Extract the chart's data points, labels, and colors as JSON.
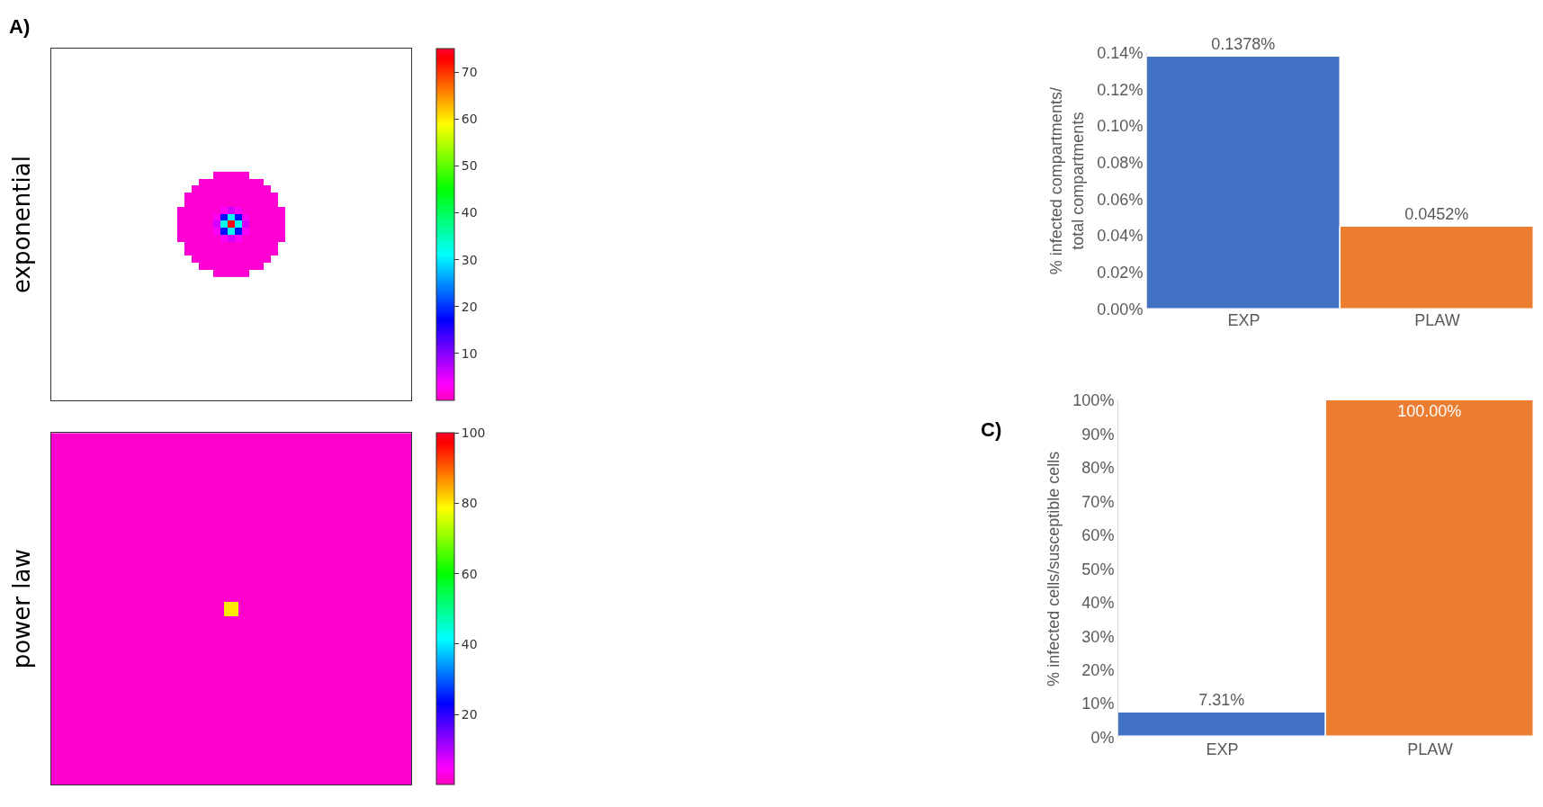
{
  "chart_data": [
    {
      "type": "heatmap",
      "ylabel": "exponential",
      "annotations": [
        "A)"
      ],
      "tick_labels": false,
      "clim": [
        0,
        75
      ],
      "cticks": [
        10,
        20,
        30,
        40,
        50,
        60,
        70
      ],
      "categories": [
        null,
        null,
        null,
        null,
        null,
        null,
        null,
        null,
        null,
        null,
        null,
        null,
        null,
        null,
        null
      ],
      "y_categories": [
        null,
        null,
        null,
        null,
        null,
        null,
        null,
        null,
        null,
        null,
        null,
        null,
        null,
        null,
        null
      ],
      "cells": [
        [
          null,
          null,
          null,
          null,
          null,
          1,
          1,
          1,
          1,
          1,
          null,
          null,
          null,
          null,
          null
        ],
        [
          null,
          null,
          null,
          1,
          1,
          1,
          1,
          1,
          1,
          1,
          1,
          1,
          null,
          null,
          null
        ],
        [
          null,
          null,
          1,
          1,
          1,
          1,
          1,
          1,
          1,
          1,
          1,
          1,
          1,
          null,
          null
        ],
        [
          null,
          1,
          1,
          1,
          1,
          1,
          1,
          1,
          1,
          1,
          1,
          1,
          1,
          1,
          null
        ],
        [
          null,
          1,
          1,
          1,
          1,
          1,
          1,
          1,
          1,
          1,
          1,
          1,
          1,
          1,
          null
        ],
        [
          1,
          1,
          1,
          1,
          1,
          1,
          3,
          6,
          3,
          1,
          1,
          1,
          1,
          1,
          1
        ],
        [
          1,
          1,
          1,
          1,
          1,
          3,
          18,
          32,
          18,
          3,
          1,
          1,
          1,
          1,
          1
        ],
        [
          1,
          1,
          1,
          1,
          1,
          6,
          32,
          74,
          32,
          6,
          1,
          1,
          1,
          1,
          1
        ],
        [
          1,
          1,
          1,
          1,
          1,
          3,
          18,
          32,
          18,
          3,
          1,
          1,
          1,
          1,
          1
        ],
        [
          1,
          1,
          1,
          1,
          1,
          1,
          3,
          6,
          3,
          1,
          1,
          1,
          1,
          1,
          1
        ],
        [
          null,
          1,
          1,
          1,
          1,
          1,
          1,
          1,
          1,
          1,
          1,
          1,
          1,
          1,
          null
        ],
        [
          null,
          1,
          1,
          1,
          1,
          1,
          1,
          1,
          1,
          1,
          1,
          1,
          1,
          1,
          null
        ],
        [
          null,
          null,
          1,
          1,
          1,
          1,
          1,
          1,
          1,
          1,
          1,
          1,
          1,
          null,
          null
        ],
        [
          null,
          null,
          null,
          1,
          1,
          1,
          1,
          1,
          1,
          1,
          1,
          1,
          null,
          null,
          null
        ],
        [
          null,
          null,
          null,
          null,
          null,
          1,
          1,
          1,
          1,
          1,
          null,
          null,
          null,
          null,
          null
        ]
      ]
    },
    {
      "type": "heatmap",
      "ylabel": "power law",
      "tick_labels": false,
      "clim": [
        0,
        100
      ],
      "cticks": [
        20,
        40,
        60,
        80,
        100
      ],
      "categories": [
        null,
        null,
        null,
        null,
        null,
        null,
        null,
        null,
        null,
        null,
        null,
        null,
        null,
        null,
        null,
        null,
        null,
        null,
        null,
        null,
        null,
        null,
        null,
        null,
        null
      ],
      "y_categories": [
        null,
        null,
        null,
        null,
        null,
        null,
        null,
        null,
        null,
        null,
        null,
        null,
        null,
        null,
        null,
        null,
        null,
        null,
        null,
        null,
        null,
        null,
        null,
        null,
        null
      ],
      "cells": [
        [
          1,
          1,
          1,
          1,
          1,
          1,
          1,
          1,
          1,
          1,
          1,
          1,
          1,
          1,
          1,
          1,
          1,
          1,
          1,
          1,
          1,
          1,
          1,
          1,
          1
        ],
        [
          1,
          1,
          1,
          1,
          1,
          1,
          1,
          1,
          1,
          1,
          1,
          1,
          1,
          1,
          1,
          1,
          1,
          1,
          1,
          1,
          1,
          1,
          1,
          1,
          1
        ],
        [
          1,
          1,
          1,
          1,
          1,
          1,
          1,
          1,
          1,
          1,
          1,
          1,
          1,
          1,
          1,
          1,
          1,
          1,
          1,
          1,
          1,
          1,
          1,
          1,
          1
        ],
        [
          1,
          1,
          1,
          1,
          1,
          1,
          1,
          1,
          1,
          1,
          1,
          1,
          1,
          1,
          1,
          1,
          1,
          1,
          1,
          1,
          1,
          1,
          1,
          1,
          1
        ],
        [
          1,
          1,
          1,
          1,
          1,
          1,
          1,
          1,
          1,
          1,
          1,
          1,
          1,
          1,
          1,
          1,
          1,
          1,
          1,
          1,
          1,
          1,
          1,
          1,
          1
        ],
        [
          1,
          1,
          1,
          1,
          1,
          1,
          1,
          1,
          1,
          1,
          1,
          1,
          1,
          1,
          1,
          1,
          1,
          1,
          1,
          1,
          1,
          1,
          1,
          1,
          1
        ],
        [
          1,
          1,
          1,
          1,
          1,
          1,
          1,
          1,
          1,
          1,
          1,
          1,
          1,
          1,
          1,
          1,
          1,
          1,
          1,
          1,
          1,
          1,
          1,
          1,
          1
        ],
        [
          1,
          1,
          1,
          1,
          1,
          1,
          1,
          1,
          1,
          1,
          1,
          1,
          1,
          1,
          1,
          1,
          1,
          1,
          1,
          1,
          1,
          1,
          1,
          1,
          1
        ],
        [
          1,
          1,
          1,
          1,
          1,
          1,
          1,
          1,
          1,
          1,
          1,
          1,
          1,
          1,
          1,
          1,
          1,
          1,
          1,
          1,
          1,
          1,
          1,
          1,
          1
        ],
        [
          1,
          1,
          1,
          1,
          1,
          1,
          1,
          1,
          1,
          1,
          1,
          1,
          1,
          1,
          1,
          1,
          1,
          1,
          1,
          1,
          1,
          1,
          1,
          1,
          1
        ],
        [
          1,
          1,
          1,
          1,
          1,
          1,
          1,
          1,
          1,
          1,
          1,
          1,
          1,
          1,
          1,
          1,
          1,
          1,
          1,
          1,
          1,
          1,
          1,
          1,
          1
        ],
        [
          1,
          1,
          1,
          1,
          1,
          1,
          1,
          1,
          1,
          1,
          1,
          1,
          1,
          1,
          1,
          1,
          1,
          1,
          1,
          1,
          1,
          1,
          1,
          1,
          1
        ],
        [
          1,
          1,
          1,
          1,
          1,
          1,
          1,
          1,
          1,
          1,
          1,
          1,
          80,
          1,
          1,
          1,
          1,
          1,
          1,
          1,
          1,
          1,
          1,
          1,
          1
        ],
        [
          1,
          1,
          1,
          1,
          1,
          1,
          1,
          1,
          1,
          1,
          1,
          1,
          1,
          1,
          1,
          1,
          1,
          1,
          1,
          1,
          1,
          1,
          1,
          1,
          1
        ],
        [
          1,
          1,
          1,
          1,
          1,
          1,
          1,
          1,
          1,
          1,
          1,
          1,
          1,
          1,
          1,
          1,
          1,
          1,
          1,
          1,
          1,
          1,
          1,
          1,
          1
        ],
        [
          1,
          1,
          1,
          1,
          1,
          1,
          1,
          1,
          1,
          1,
          1,
          1,
          1,
          1,
          1,
          1,
          1,
          1,
          1,
          1,
          1,
          1,
          1,
          1,
          1
        ],
        [
          1,
          1,
          1,
          1,
          1,
          1,
          1,
          1,
          1,
          1,
          1,
          1,
          1,
          1,
          1,
          1,
          1,
          1,
          1,
          1,
          1,
          1,
          1,
          1,
          1
        ],
        [
          1,
          1,
          1,
          1,
          1,
          1,
          1,
          1,
          1,
          1,
          1,
          1,
          1,
          1,
          1,
          1,
          1,
          1,
          1,
          1,
          1,
          1,
          1,
          1,
          1
        ],
        [
          1,
          1,
          1,
          1,
          1,
          1,
          1,
          1,
          1,
          1,
          1,
          1,
          1,
          1,
          1,
          1,
          1,
          1,
          1,
          1,
          1,
          1,
          1,
          1,
          1
        ],
        [
          1,
          1,
          1,
          1,
          1,
          1,
          1,
          1,
          1,
          1,
          1,
          1,
          1,
          1,
          1,
          1,
          1,
          1,
          1,
          1,
          1,
          1,
          1,
          1,
          1
        ],
        [
          1,
          1,
          1,
          1,
          1,
          1,
          1,
          1,
          1,
          1,
          1,
          1,
          1,
          1,
          1,
          1,
          1,
          1,
          1,
          1,
          1,
          1,
          1,
          1,
          1
        ],
        [
          1,
          1,
          1,
          1,
          1,
          1,
          1,
          1,
          1,
          1,
          1,
          1,
          1,
          1,
          1,
          1,
          1,
          1,
          1,
          1,
          1,
          1,
          1,
          1,
          1
        ],
        [
          1,
          1,
          1,
          1,
          1,
          1,
          1,
          1,
          1,
          1,
          1,
          1,
          1,
          1,
          1,
          1,
          1,
          1,
          1,
          1,
          1,
          1,
          1,
          1,
          1
        ],
        [
          1,
          1,
          1,
          1,
          1,
          1,
          1,
          1,
          1,
          1,
          1,
          1,
          1,
          1,
          1,
          1,
          1,
          1,
          1,
          1,
          1,
          1,
          1,
          1,
          1
        ],
        [
          1,
          1,
          1,
          1,
          1,
          1,
          1,
          1,
          1,
          1,
          1,
          1,
          1,
          1,
          1,
          1,
          1,
          1,
          1,
          1,
          1,
          1,
          1,
          1,
          1
        ]
      ]
    },
    {
      "type": "bar",
      "ylabel": "% infected compartments/\ntotal compartments",
      "categories": [
        "EXP",
        "PLAW"
      ],
      "values": [
        0.1378,
        0.0452
      ],
      "colors": [
        "#4472c4",
        "#ed7d31"
      ],
      "value_labels": [
        "0.1378%",
        "0.0452%"
      ],
      "ylim": [
        0,
        0.14
      ],
      "yticks": [
        {
          "value": 0,
          "label": "0.00%"
        },
        {
          "value": 0.02,
          "label": "0.02%"
        },
        {
          "value": 0.04,
          "label": "0.04%"
        },
        {
          "value": 0.06,
          "label": "0.06%"
        },
        {
          "value": 0.08,
          "label": "0.08%"
        },
        {
          "value": 0.1,
          "label": "0.10%"
        },
        {
          "value": 0.12,
          "label": "0.12%"
        },
        {
          "value": 0.14,
          "label": "0.14%"
        }
      ]
    },
    {
      "type": "bar",
      "ylabel": "% infected cells/susceptible cells",
      "annotations": [
        "C)"
      ],
      "categories": [
        "EXP",
        "PLAW"
      ],
      "values": [
        7.31,
        100
      ],
      "colors": [
        "#4472c4",
        "#ed7d31"
      ],
      "value_labels": [
        "7.31%",
        "100.00%"
      ],
      "ylim": [
        0,
        100
      ],
      "yticks": [
        {
          "value": 0,
          "label": "0%"
        },
        {
          "value": 10,
          "label": "10%"
        },
        {
          "value": 20,
          "label": "20%"
        },
        {
          "value": 30,
          "label": "30%"
        },
        {
          "value": 40,
          "label": "40%"
        },
        {
          "value": 50,
          "label": "50%"
        },
        {
          "value": 60,
          "label": "60%"
        },
        {
          "value": 70,
          "label": "70%"
        },
        {
          "value": 80,
          "label": "80%"
        },
        {
          "value": 90,
          "label": "90%"
        },
        {
          "value": 100,
          "label": "100%"
        }
      ]
    }
  ]
}
